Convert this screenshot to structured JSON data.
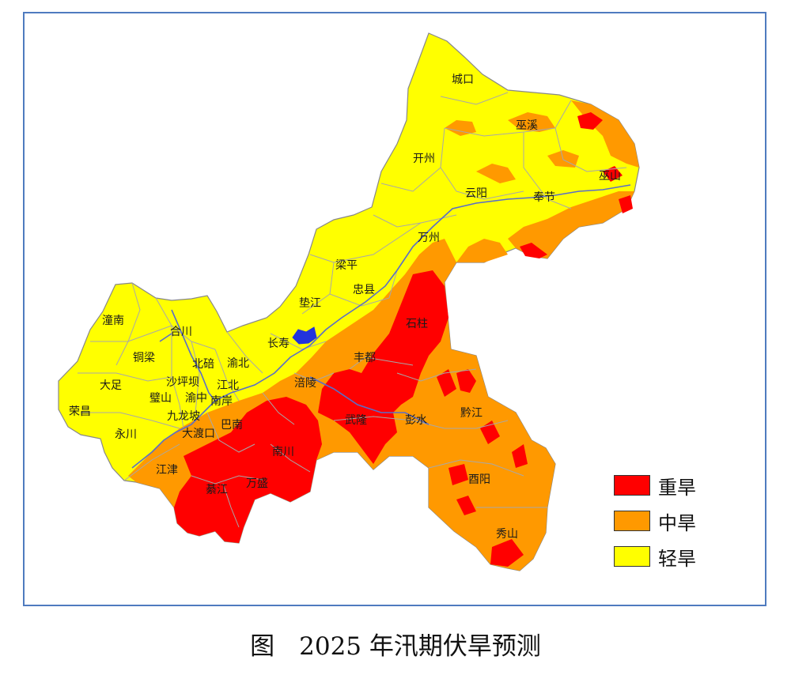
{
  "map": {
    "colors": {
      "severe": "#ff0000",
      "moderate": "#ff9900",
      "light": "#ffff00",
      "boundary": "#b9b9b9",
      "river": "#5a6ec8",
      "lake": "#2233dd",
      "frame": "#4f7bbf"
    },
    "places": [
      {
        "id": "chengkou",
        "name": "城口"
      },
      {
        "id": "wuxi",
        "name": "巫溪"
      },
      {
        "id": "kaizhou",
        "name": "开州"
      },
      {
        "id": "wushan",
        "name": "巫山"
      },
      {
        "id": "yunyang",
        "name": "云阳"
      },
      {
        "id": "fengjie",
        "name": "奉节"
      },
      {
        "id": "liangping",
        "name": "梁平"
      },
      {
        "id": "wanzhou",
        "name": "万州"
      },
      {
        "id": "zhongxian",
        "name": "忠县"
      },
      {
        "id": "dianjiang",
        "name": "垫江"
      },
      {
        "id": "shizhu",
        "name": "石柱"
      },
      {
        "id": "changshou",
        "name": "长寿"
      },
      {
        "id": "fengdu",
        "name": "丰都"
      },
      {
        "id": "tongnan",
        "name": "潼南"
      },
      {
        "id": "hechuan",
        "name": "合川"
      },
      {
        "id": "tongliang",
        "name": "铜梁"
      },
      {
        "id": "beibei",
        "name": "北碚"
      },
      {
        "id": "yubei",
        "name": "渝北"
      },
      {
        "id": "dazu",
        "name": "大足"
      },
      {
        "id": "shapingba",
        "name": "沙坪坝"
      },
      {
        "id": "jiangbei",
        "name": "江北"
      },
      {
        "id": "fuling",
        "name": "涪陵"
      },
      {
        "id": "bishan",
        "name": "璧山"
      },
      {
        "id": "yuzhong",
        "name": "渝中"
      },
      {
        "id": "nanan",
        "name": "南岸"
      },
      {
        "id": "rongchang",
        "name": "荣昌"
      },
      {
        "id": "jiulongpo",
        "name": "九龙坡"
      },
      {
        "id": "wulong",
        "name": "武隆"
      },
      {
        "id": "pengshui",
        "name": "彭水"
      },
      {
        "id": "qianjiang",
        "name": "黔江"
      },
      {
        "id": "banan",
        "name": "巴南"
      },
      {
        "id": "dadukou",
        "name": "大渡口"
      },
      {
        "id": "yongchuan",
        "name": "永川"
      },
      {
        "id": "nanchuan",
        "name": "南川"
      },
      {
        "id": "jiangjin",
        "name": "江津"
      },
      {
        "id": "youyang",
        "name": "酉阳"
      },
      {
        "id": "qijiang",
        "name": "綦江"
      },
      {
        "id": "wansheng",
        "name": "万盛"
      },
      {
        "id": "xiushan",
        "name": "秀山"
      }
    ]
  },
  "legend": {
    "items": [
      {
        "label": "重旱",
        "color": "#ff0000"
      },
      {
        "label": "中旱",
        "color": "#ff9900"
      },
      {
        "label": "轻旱",
        "color": "#ffff00"
      }
    ]
  },
  "caption": "图　2025 年汛期伏旱预测"
}
